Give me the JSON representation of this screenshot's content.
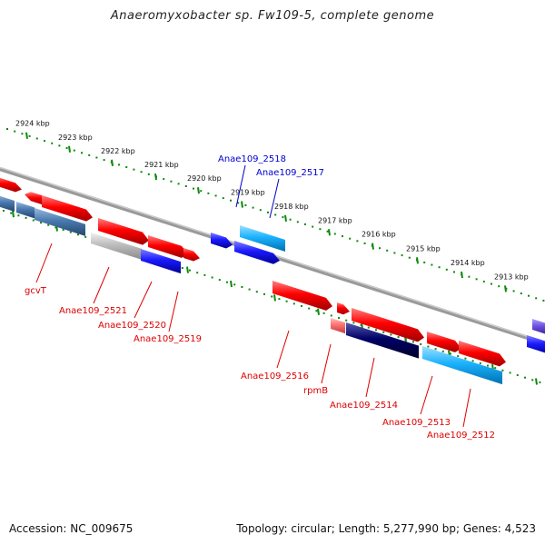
{
  "title": "Anaeromyxobacter sp. Fw109-5, complete genome",
  "footer": {
    "accession": "Accession: NC_009675",
    "topology": "Topology: circular; Length: 5,277,990 bp; Genes: 4,523"
  },
  "ruler": {
    "unit_suffix": " kbp",
    "positions_kbp": [
      2924,
      2923,
      2922,
      2921,
      2920,
      2919,
      2918,
      2917,
      2916,
      2915,
      2914,
      2913
    ]
  },
  "genes_top": [
    {
      "label": "Anae109_2518",
      "color": "#0000cc"
    },
    {
      "label": "Anae109_2517",
      "color": "#0000cc"
    }
  ],
  "genes_bottom": [
    {
      "label": "gcvT",
      "color": "#dd0000"
    },
    {
      "label": "Anae109_2521",
      "color": "#dd0000"
    },
    {
      "label": "Anae109_2520",
      "color": "#dd0000"
    },
    {
      "label": "Anae109_2519",
      "color": "#dd0000"
    },
    {
      "label": "Anae109_2516",
      "color": "#dd0000"
    },
    {
      "label": "rpmB",
      "color": "#dd0000"
    },
    {
      "label": "Anae109_2514",
      "color": "#dd0000"
    },
    {
      "label": "Anae109_2513",
      "color": "#dd0000"
    },
    {
      "label": "Anae109_2512",
      "color": "#dd0000"
    }
  ],
  "colors": {
    "forward": "#ff0000",
    "reverse_blue": "#1a1aff",
    "cyan": "#1ab2ff",
    "steel": "#4a7ab0",
    "navy": "#000066",
    "gray": "#bdbdbd",
    "backbone": "#888888",
    "ticks": "#0a8a0a"
  }
}
